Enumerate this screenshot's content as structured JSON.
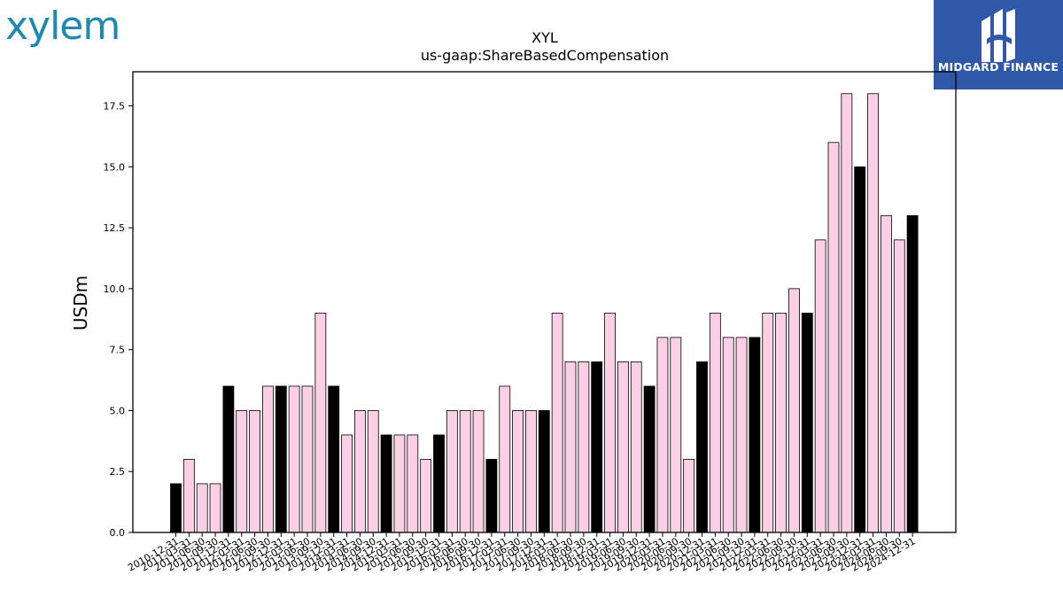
{
  "brand": {
    "company_logo_text": "xylem",
    "partner_logo_text": "MIDGARD FINANCE"
  },
  "colors": {
    "annual_bar": "#000000",
    "quarterly_bar": "#fccfe6",
    "bar_edge": "#000000",
    "logo_left": "#1b8ab2",
    "logo_right_bg": "#2f58a8"
  },
  "chart_data": {
    "type": "bar",
    "title": "XYL",
    "subtitle": "us-gaap:ShareBasedCompensation",
    "ylabel": "USDm",
    "xlabel": "",
    "ylim": [
      0,
      18.9
    ],
    "yticks": [
      "0.0",
      "2.5",
      "5.0",
      "7.5",
      "10.0",
      "12.5",
      "15.0",
      "17.5"
    ],
    "grid": false,
    "categories": [
      "2010-12-31",
      "2011-03-31",
      "2011-06-30",
      "2011-09-30",
      "2011-12-31",
      "2012-03-31",
      "2012-06-30",
      "2012-09-30",
      "2012-12-31",
      "2013-03-31",
      "2013-06-30",
      "2013-09-30",
      "2013-12-31",
      "2014-03-31",
      "2014-06-30",
      "2014-09-30",
      "2014-12-31",
      "2015-03-31",
      "2015-06-30",
      "2015-09-30",
      "2015-12-31",
      "2016-03-31",
      "2016-06-30",
      "2016-09-30",
      "2016-12-31",
      "2017-03-31",
      "2017-06-30",
      "2017-09-30",
      "2017-12-31",
      "2018-03-31",
      "2018-06-30",
      "2018-09-30",
      "2018-12-31",
      "2019-03-31",
      "2019-06-30",
      "2019-09-30",
      "2019-12-31",
      "2020-03-31",
      "2020-06-30",
      "2020-09-30",
      "2020-12-31",
      "2021-03-31",
      "2021-06-30",
      "2021-09-30",
      "2021-12-31",
      "2022-03-31",
      "2022-06-30",
      "2022-09-30",
      "2022-12-31",
      "2023-03-31",
      "2023-06-30",
      "2023-09-30",
      "2023-12-31",
      "2024-03-31",
      "2024-06-30",
      "2024-09-30",
      "2024-12-31"
    ],
    "values": [
      2,
      3,
      2,
      2,
      6,
      5,
      5,
      6,
      6,
      6,
      6,
      9,
      6,
      4,
      5,
      5,
      4,
      4,
      4,
      3,
      4,
      5,
      5,
      5,
      3,
      6,
      5,
      5,
      5,
      9,
      7,
      7,
      7,
      9,
      7,
      7,
      6,
      8,
      8,
      3,
      7,
      9,
      8,
      8,
      8,
      9,
      9,
      10,
      9,
      12,
      16,
      18,
      15,
      18,
      13,
      12,
      13
    ],
    "annual": [
      true,
      false,
      false,
      false,
      true,
      false,
      false,
      false,
      true,
      false,
      false,
      false,
      true,
      false,
      false,
      false,
      true,
      false,
      false,
      false,
      true,
      false,
      false,
      false,
      true,
      false,
      false,
      false,
      true,
      false,
      false,
      false,
      true,
      false,
      false,
      false,
      true,
      false,
      false,
      false,
      true,
      false,
      false,
      false,
      true,
      false,
      false,
      false,
      true,
      false,
      false,
      false,
      true,
      false,
      false,
      false,
      true
    ]
  }
}
